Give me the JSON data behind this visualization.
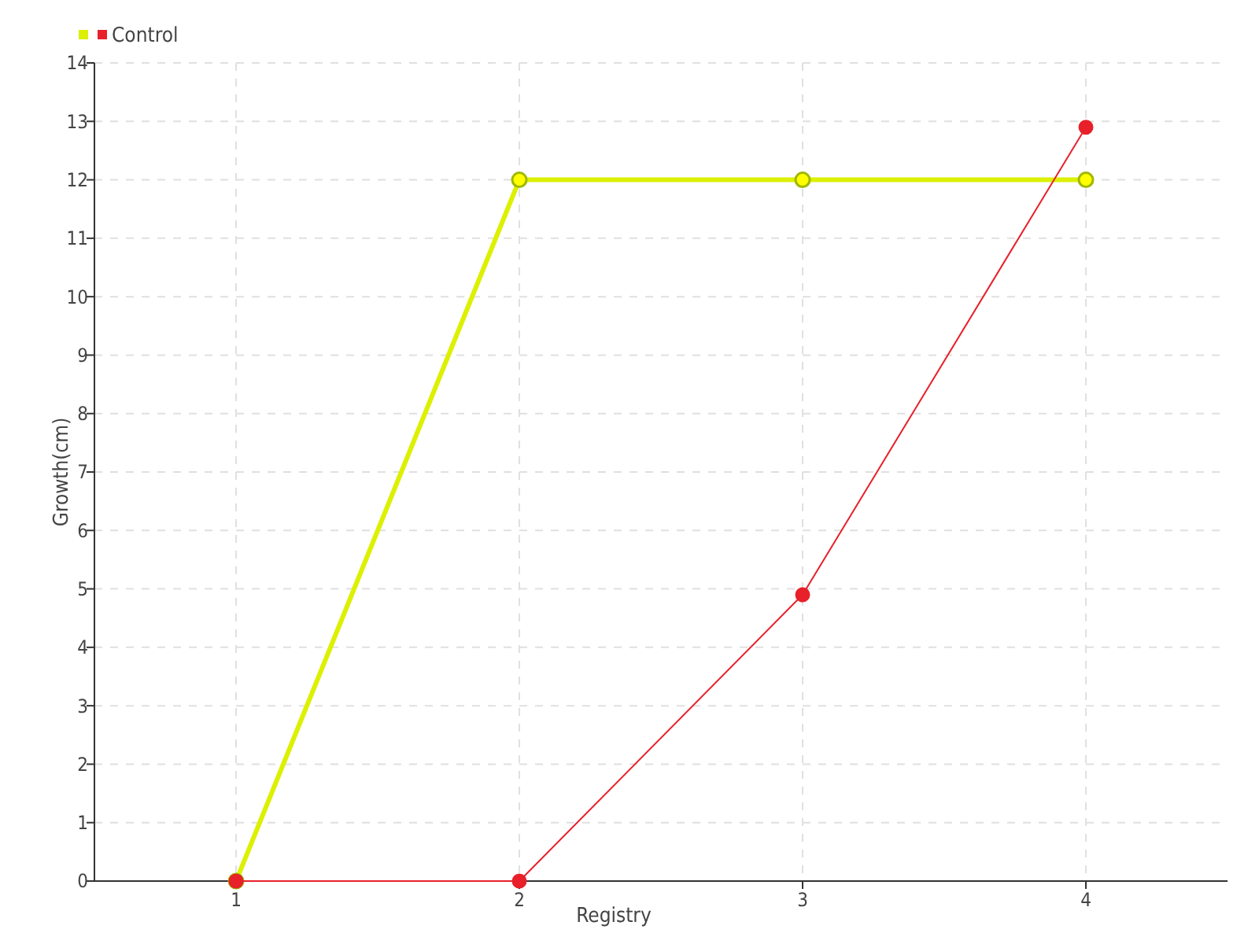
{
  "chart_data": {
    "type": "line",
    "xlabel": "Registry",
    "ylabel": "Growth(cm)",
    "categories": [
      "1",
      "2",
      "3",
      "4"
    ],
    "series": [
      {
        "color": "#dcf000",
        "values": [
          0,
          12,
          12,
          12
        ]
      },
      {
        "name": "Control",
        "color": "#e8202a",
        "values": [
          0,
          0,
          4.9,
          12.9
        ]
      }
    ],
    "ylim": [
      0,
      14
    ],
    "yticks": [
      0,
      1,
      2,
      3,
      4,
      5,
      6,
      7,
      8,
      9,
      10,
      11,
      12,
      13,
      14
    ],
    "grid": true,
    "legend": "top left",
    "marker": "circle"
  }
}
